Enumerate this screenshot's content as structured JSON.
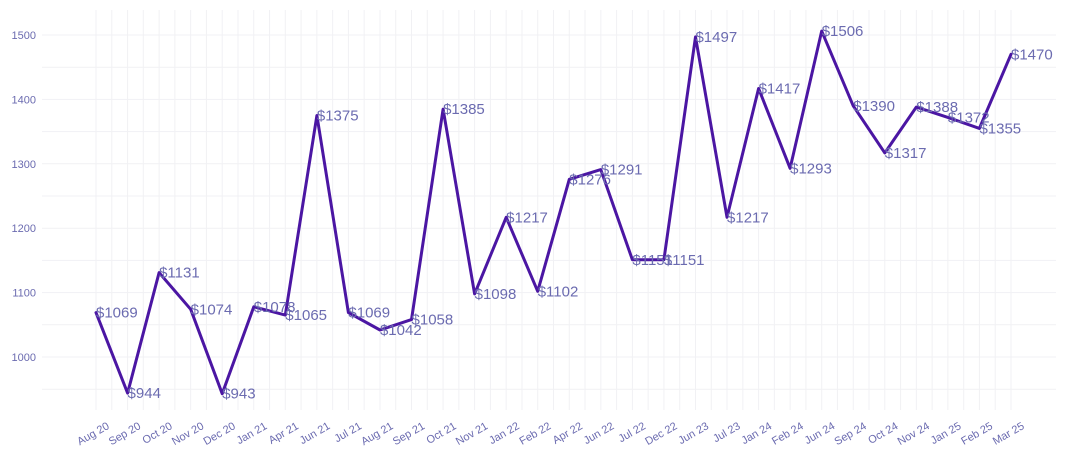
{
  "chart_data": {
    "type": "line",
    "title": "",
    "xlabel": "",
    "ylabel": "",
    "ylim": [
      920,
      1540
    ],
    "y_ticks": [
      1000,
      1100,
      1200,
      1300,
      1400,
      1500
    ],
    "grid": true,
    "legend": "none",
    "line_color": "#4b16a3",
    "label_color": "#6b6bb0",
    "value_prefix": "$",
    "categories": [
      "Aug 20",
      "Sep 20",
      "Oct 20",
      "Nov 20",
      "Dec 20",
      "Jan 21",
      "Apr 21",
      "Jun 21",
      "Jul 21",
      "Aug 21",
      "Sep 21",
      "Oct 21",
      "Nov 21",
      "Jan 22",
      "Feb 22",
      "Apr 22",
      "Jun 22",
      "Jul 22",
      "Dec 22",
      "Jun 23",
      "Jul 23",
      "Jan 24",
      "Feb 24",
      "Jun 24",
      "Sep 24",
      "Oct 24",
      "Nov 24",
      "Jan 25",
      "Feb 25",
      "Mar 25"
    ],
    "values": [
      1069,
      944,
      1131,
      1074,
      943,
      1078,
      1065,
      1375,
      1069,
      1042,
      1058,
      1385,
      1098,
      1217,
      1102,
      1276,
      1291,
      1151,
      1151,
      1497,
      1217,
      1417,
      1293,
      1506,
      1390,
      1317,
      1388,
      1372,
      1355,
      1470
    ],
    "data_labels": [
      "$1069",
      "$944",
      "$1131",
      "$1074",
      "$943",
      "$1078",
      "$1065",
      "$1375",
      "$1069",
      "$1042",
      "$1058",
      "$1385",
      "$1098",
      "$1217",
      "$1102",
      "$1276",
      "$1291",
      "$1151",
      "$1151",
      "$1497",
      "$1217",
      "$1417",
      "$1293",
      "$1506",
      "$1390",
      "$1317",
      "$1388",
      "$1372",
      "$1355",
      "$1470"
    ]
  }
}
